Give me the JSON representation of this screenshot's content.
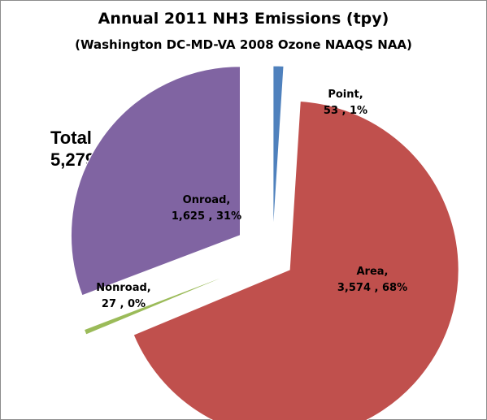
{
  "chart_data": {
    "type": "pie",
    "title": "Annual 2011 NH3 Emissions (tpy)",
    "subtitle": "(Washington DC-MD-VA 2008 Ozone NAAQS NAA)",
    "total_label": "Total",
    "total_value": "5,279",
    "slices": [
      {
        "name": "Point",
        "value": 53,
        "value_label": "53",
        "percent_label": "1%",
        "color": "#4f81bd"
      },
      {
        "name": "Area",
        "value": 3574,
        "value_label": "3,574",
        "percent_label": "68%",
        "color": "#c0504d"
      },
      {
        "name": "Nonroad",
        "value": 27,
        "value_label": "27",
        "percent_label": "0%",
        "color": "#9bbb59"
      },
      {
        "name": "Onroad",
        "value": 1625,
        "value_label": "1,625",
        "percent_label": "31%",
        "color": "#8064a2"
      }
    ],
    "exploded": true
  }
}
